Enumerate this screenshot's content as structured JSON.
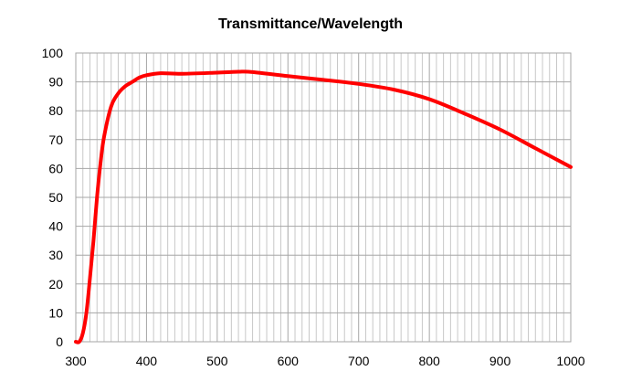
{
  "chart_data": {
    "type": "line",
    "title": "Transmittance/Wavelength",
    "xlabel": "",
    "ylabel": "",
    "xlim": [
      300,
      1000
    ],
    "ylim": [
      0,
      100
    ],
    "xticks": [
      300,
      400,
      500,
      600,
      700,
      800,
      900,
      1000
    ],
    "yticks": [
      0,
      10,
      20,
      30,
      40,
      50,
      60,
      70,
      80,
      90,
      100
    ],
    "grid": true,
    "series": [
      {
        "color": "#ff0000",
        "x": [
          300,
          305,
          310,
          315,
          320,
          325,
          330,
          335,
          340,
          350,
          360,
          370,
          380,
          390,
          400,
          420,
          450,
          500,
          530,
          550,
          600,
          650,
          700,
          750,
          800,
          850,
          900,
          950,
          1000
        ],
        "y": [
          0,
          0,
          3,
          10,
          22,
          35,
          50,
          62,
          71,
          81.5,
          86,
          88.5,
          90,
          91.5,
          92.3,
          93,
          92.8,
          93.2,
          93.5,
          93.4,
          92,
          90.7,
          89.3,
          87.3,
          84,
          79,
          73.5,
          67,
          60.5
        ]
      }
    ]
  }
}
